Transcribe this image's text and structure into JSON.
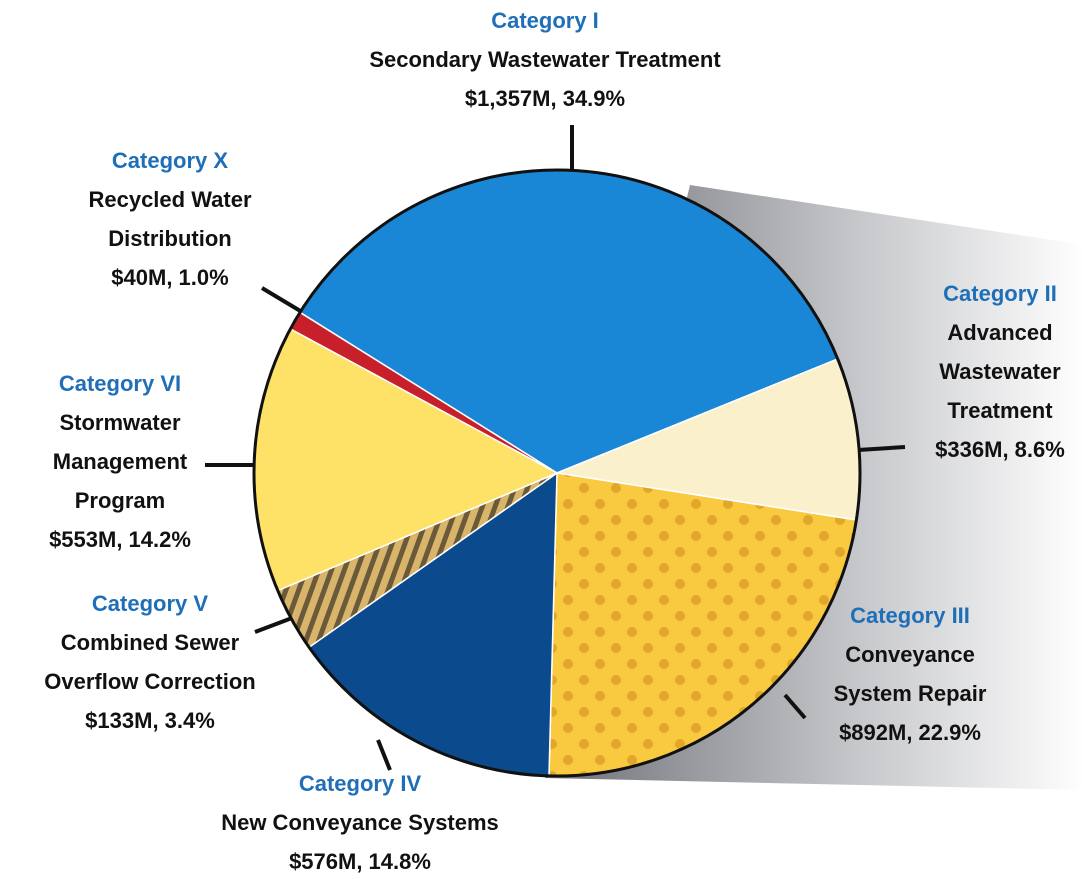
{
  "chart_data": {
    "type": "pie",
    "categories": [
      "Category I",
      "Category II",
      "Category III",
      "Category IV",
      "Category V",
      "Category VI",
      "Category X"
    ],
    "descriptions": [
      [
        "Secondary Wastewater Treatment"
      ],
      [
        "Advanced",
        "Wastewater",
        "Treatment"
      ],
      [
        "Conveyance",
        "System Repair"
      ],
      [
        "New Conveyance Systems"
      ],
      [
        "Combined Sewer",
        "Overflow Correction"
      ],
      [
        "Stormwater",
        "Management",
        "Program"
      ],
      [
        "Recycled Water",
        "Distribution"
      ]
    ],
    "values": [
      34.9,
      8.6,
      22.9,
      14.8,
      3.4,
      14.2,
      1.0
    ],
    "value_labels": [
      "$1,357M, 34.9%",
      "$336M, 8.6%",
      "$892M, 22.9%",
      "$576M, 14.8%",
      "$133M, 3.4%",
      "$553M, 14.2%",
      "$40M, 1.0%"
    ],
    "colors": [
      "#1a87d6",
      "#fbf0cc",
      "#f9c93f",
      "#0b4a8c",
      "#d8b56a",
      "#fde267",
      "#c8202a"
    ]
  }
}
